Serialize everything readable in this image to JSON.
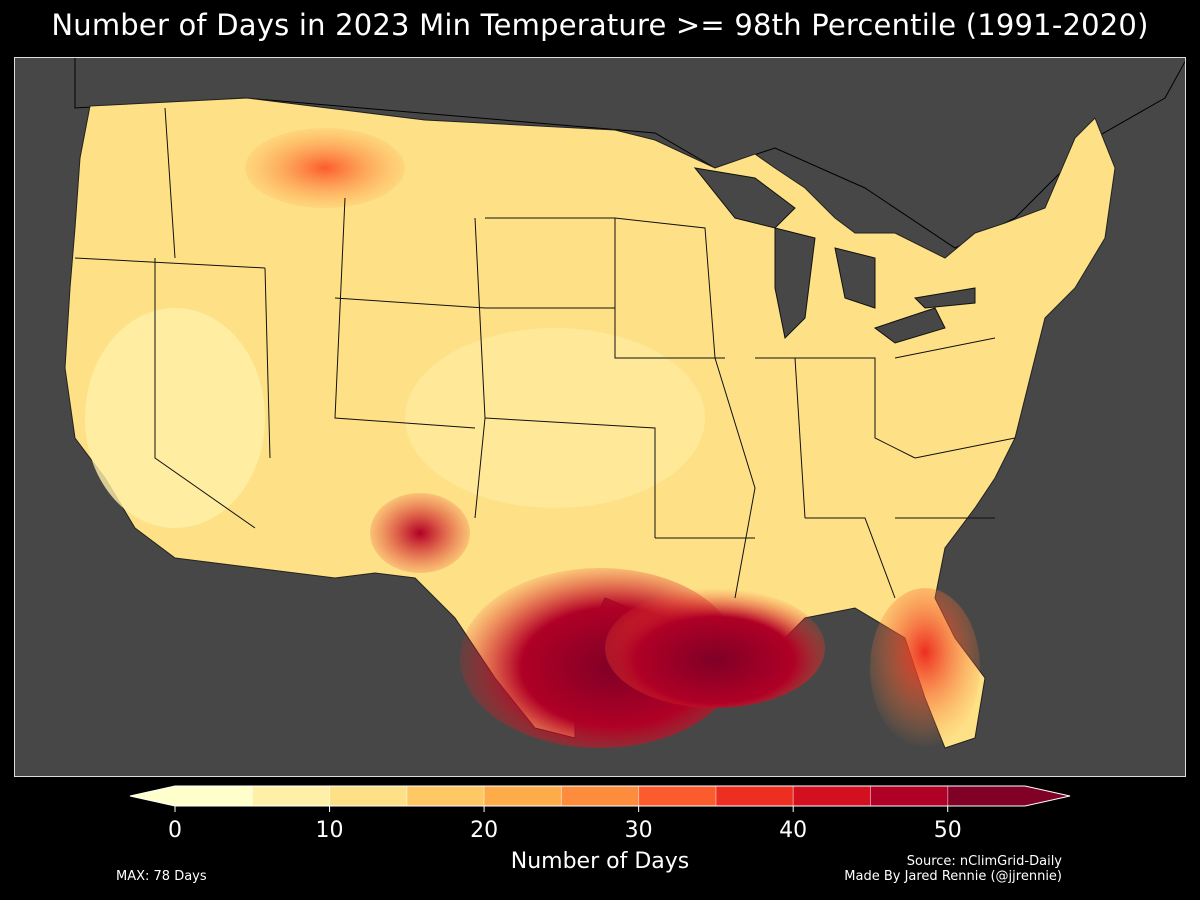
{
  "title": "Number of Days in 2023 Min Temperature >= 98th Percentile (1991-2020)",
  "colorbar": {
    "label": "Number of Days",
    "ticks": [
      "0",
      "10",
      "20",
      "30",
      "40",
      "50"
    ],
    "tick_values": [
      0,
      10,
      20,
      30,
      40,
      50
    ],
    "range": [
      0,
      55
    ],
    "step": 5,
    "extend": "both",
    "colors": [
      "#ffffcc",
      "#fff0a8",
      "#fee187",
      "#fec965",
      "#feab49",
      "#fd8d3c",
      "#fc5b2e",
      "#ed2e21",
      "#d41020",
      "#b00026",
      "#800026"
    ]
  },
  "max_note": "MAX: 78 Days",
  "source": "Source: nClimGrid-Daily",
  "author": "Made By Jared Rennie (@jjrennie)",
  "map": {
    "region": "Contiguous United States (county level)",
    "background_color": "#474747",
    "border_color": "#000000"
  }
}
